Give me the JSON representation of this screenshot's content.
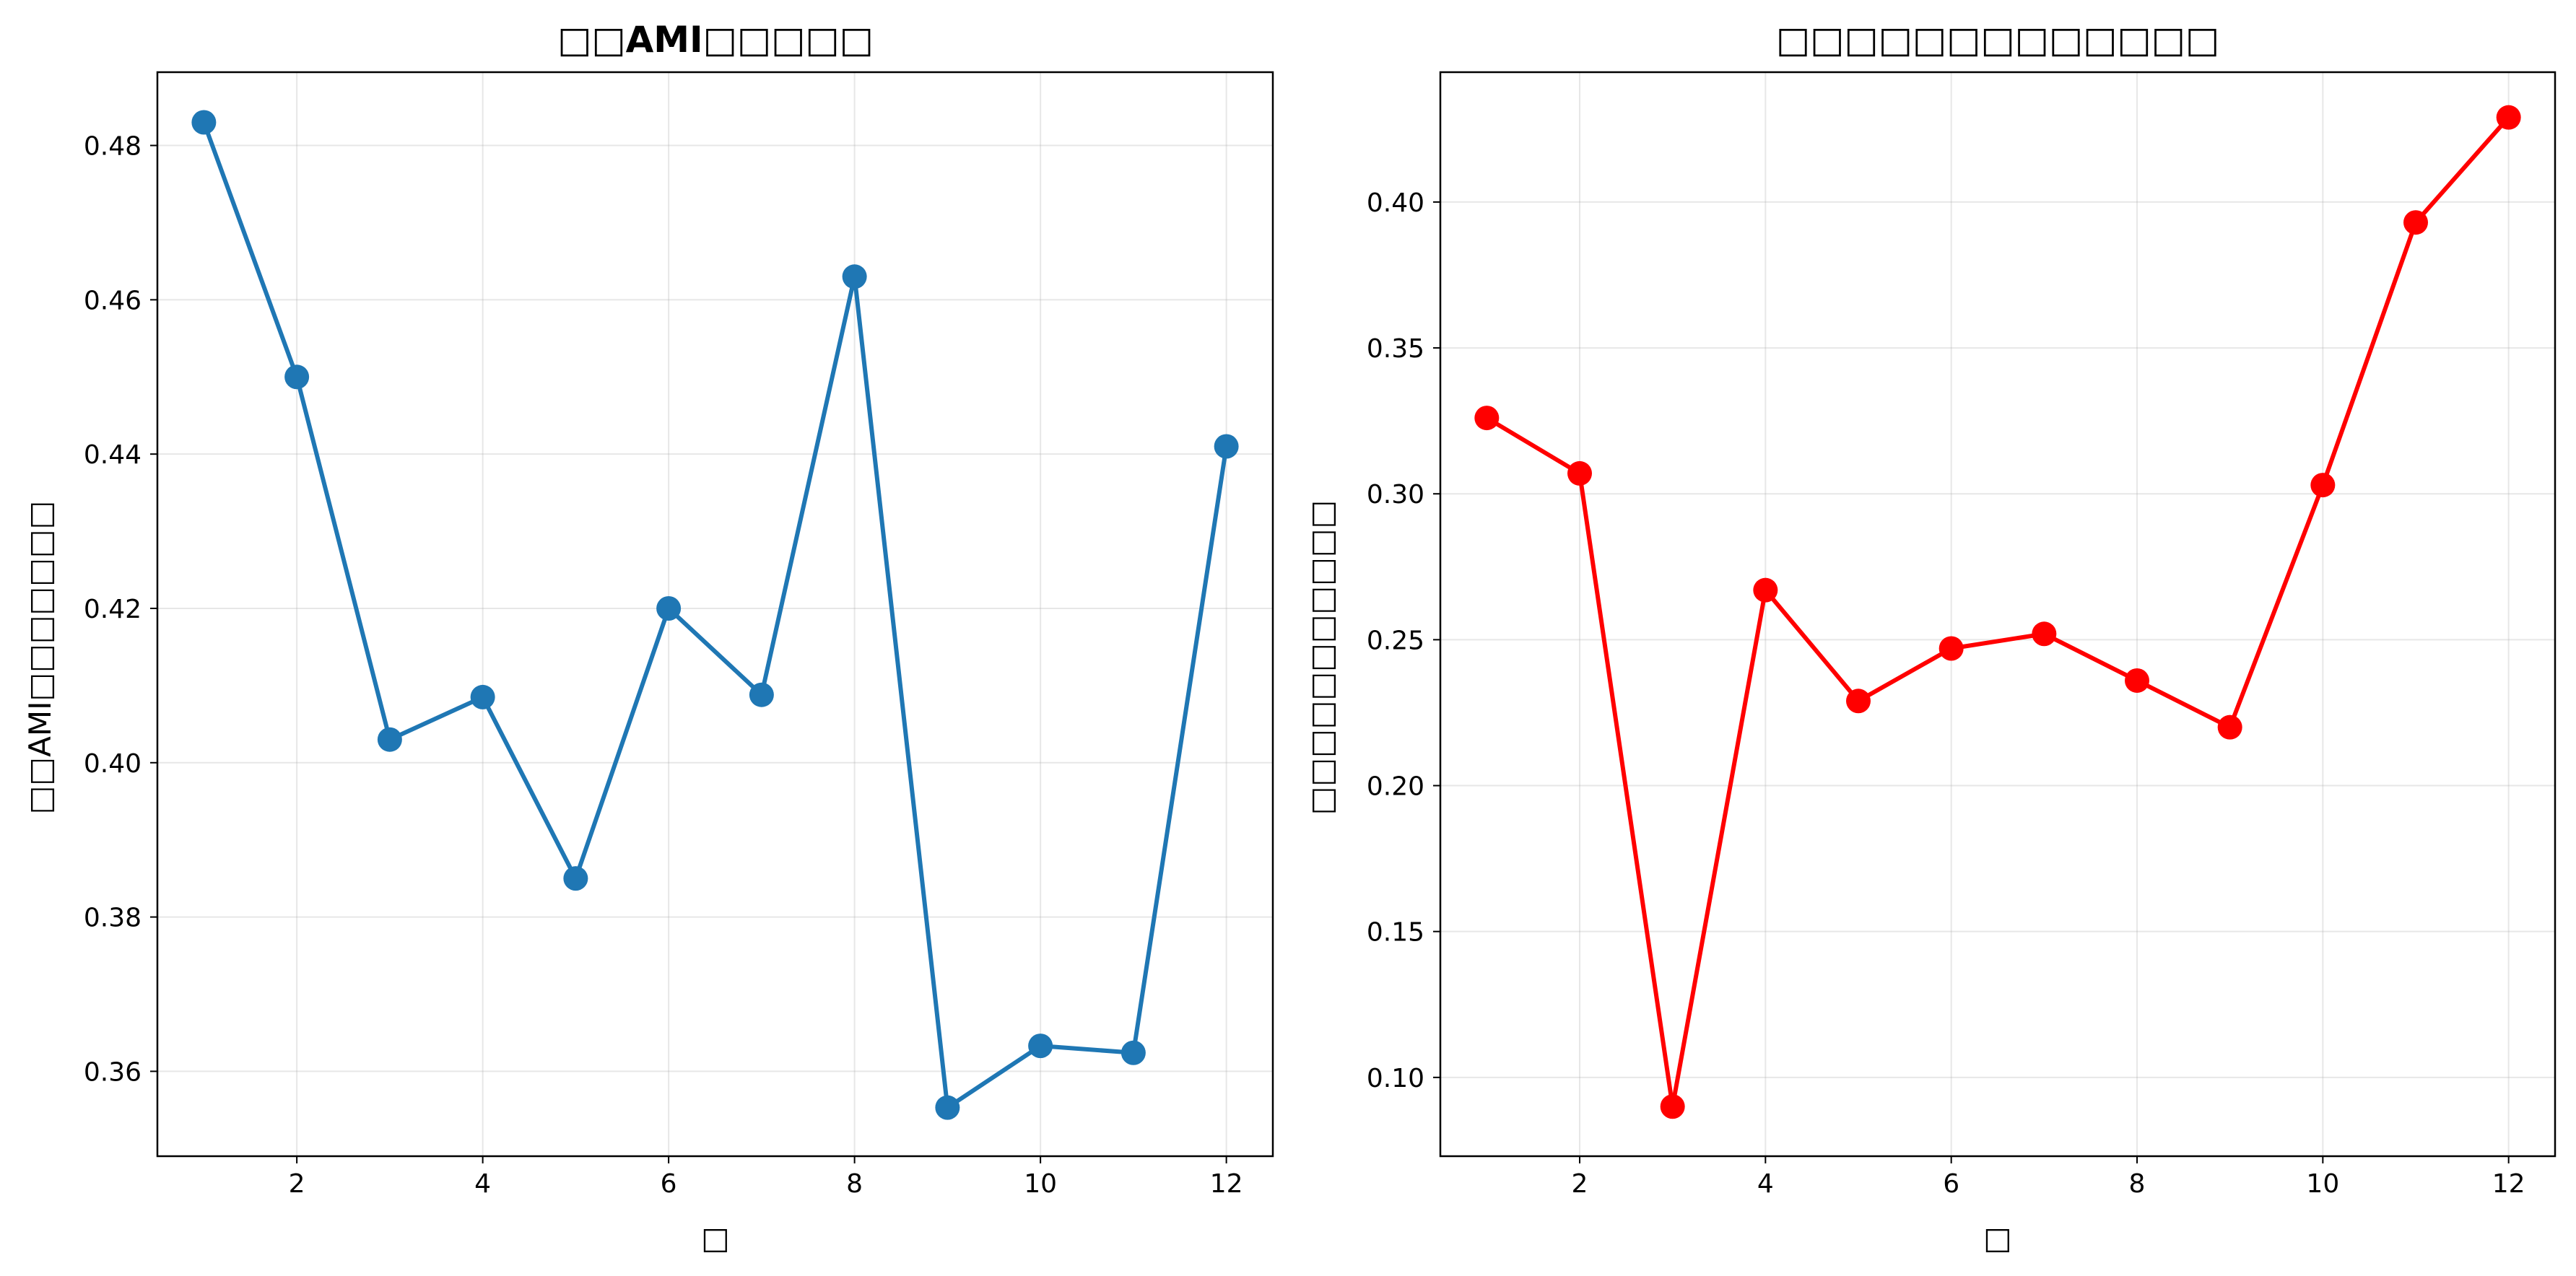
{
  "chart_data": [
    {
      "type": "line",
      "title": "□□AMI□□□□□",
      "xlabel": "□",
      "ylabel": "□□AMI□□□□□□□",
      "color": "#1f77b4",
      "x": [
        1,
        2,
        3,
        4,
        5,
        6,
        7,
        8,
        9,
        10,
        11,
        12
      ],
      "values": [
        0.483,
        0.45,
        0.403,
        0.4085,
        0.385,
        0.42,
        0.4088,
        0.463,
        0.3553,
        0.3633,
        0.3624,
        0.441
      ],
      "xlim": [
        0.5,
        12.5
      ],
      "ylim": [
        0.349,
        0.4895
      ],
      "xticks": [
        2,
        4,
        6,
        8,
        10,
        12
      ],
      "yticks": [
        0.36,
        0.38,
        0.4,
        0.42,
        0.44,
        0.46,
        0.48
      ],
      "ytick_labels": [
        "0.36",
        "0.38",
        "0.40",
        "0.42",
        "0.44",
        "0.46",
        "0.48"
      ],
      "grid": true
    },
    {
      "type": "line",
      "title": "□□□□□□□□□□□□□",
      "xlabel": "□",
      "ylabel": "□□□□□□□□□□□",
      "color": "#ff0000",
      "x": [
        1,
        2,
        3,
        4,
        5,
        6,
        7,
        8,
        9,
        10,
        11,
        12
      ],
      "values": [
        0.326,
        0.307,
        0.09,
        0.267,
        0.229,
        0.247,
        0.252,
        0.236,
        0.22,
        0.303,
        0.393,
        0.429
      ],
      "xlim": [
        0.5,
        12.5
      ],
      "ylim": [
        0.073,
        0.4445
      ],
      "xticks": [
        2,
        4,
        6,
        8,
        10,
        12
      ],
      "yticks": [
        0.1,
        0.15,
        0.2,
        0.25,
        0.3,
        0.35,
        0.4
      ],
      "ytick_labels": [
        "0.10",
        "0.15",
        "0.20",
        "0.25",
        "0.30",
        "0.35",
        "0.40"
      ],
      "grid": true
    }
  ]
}
